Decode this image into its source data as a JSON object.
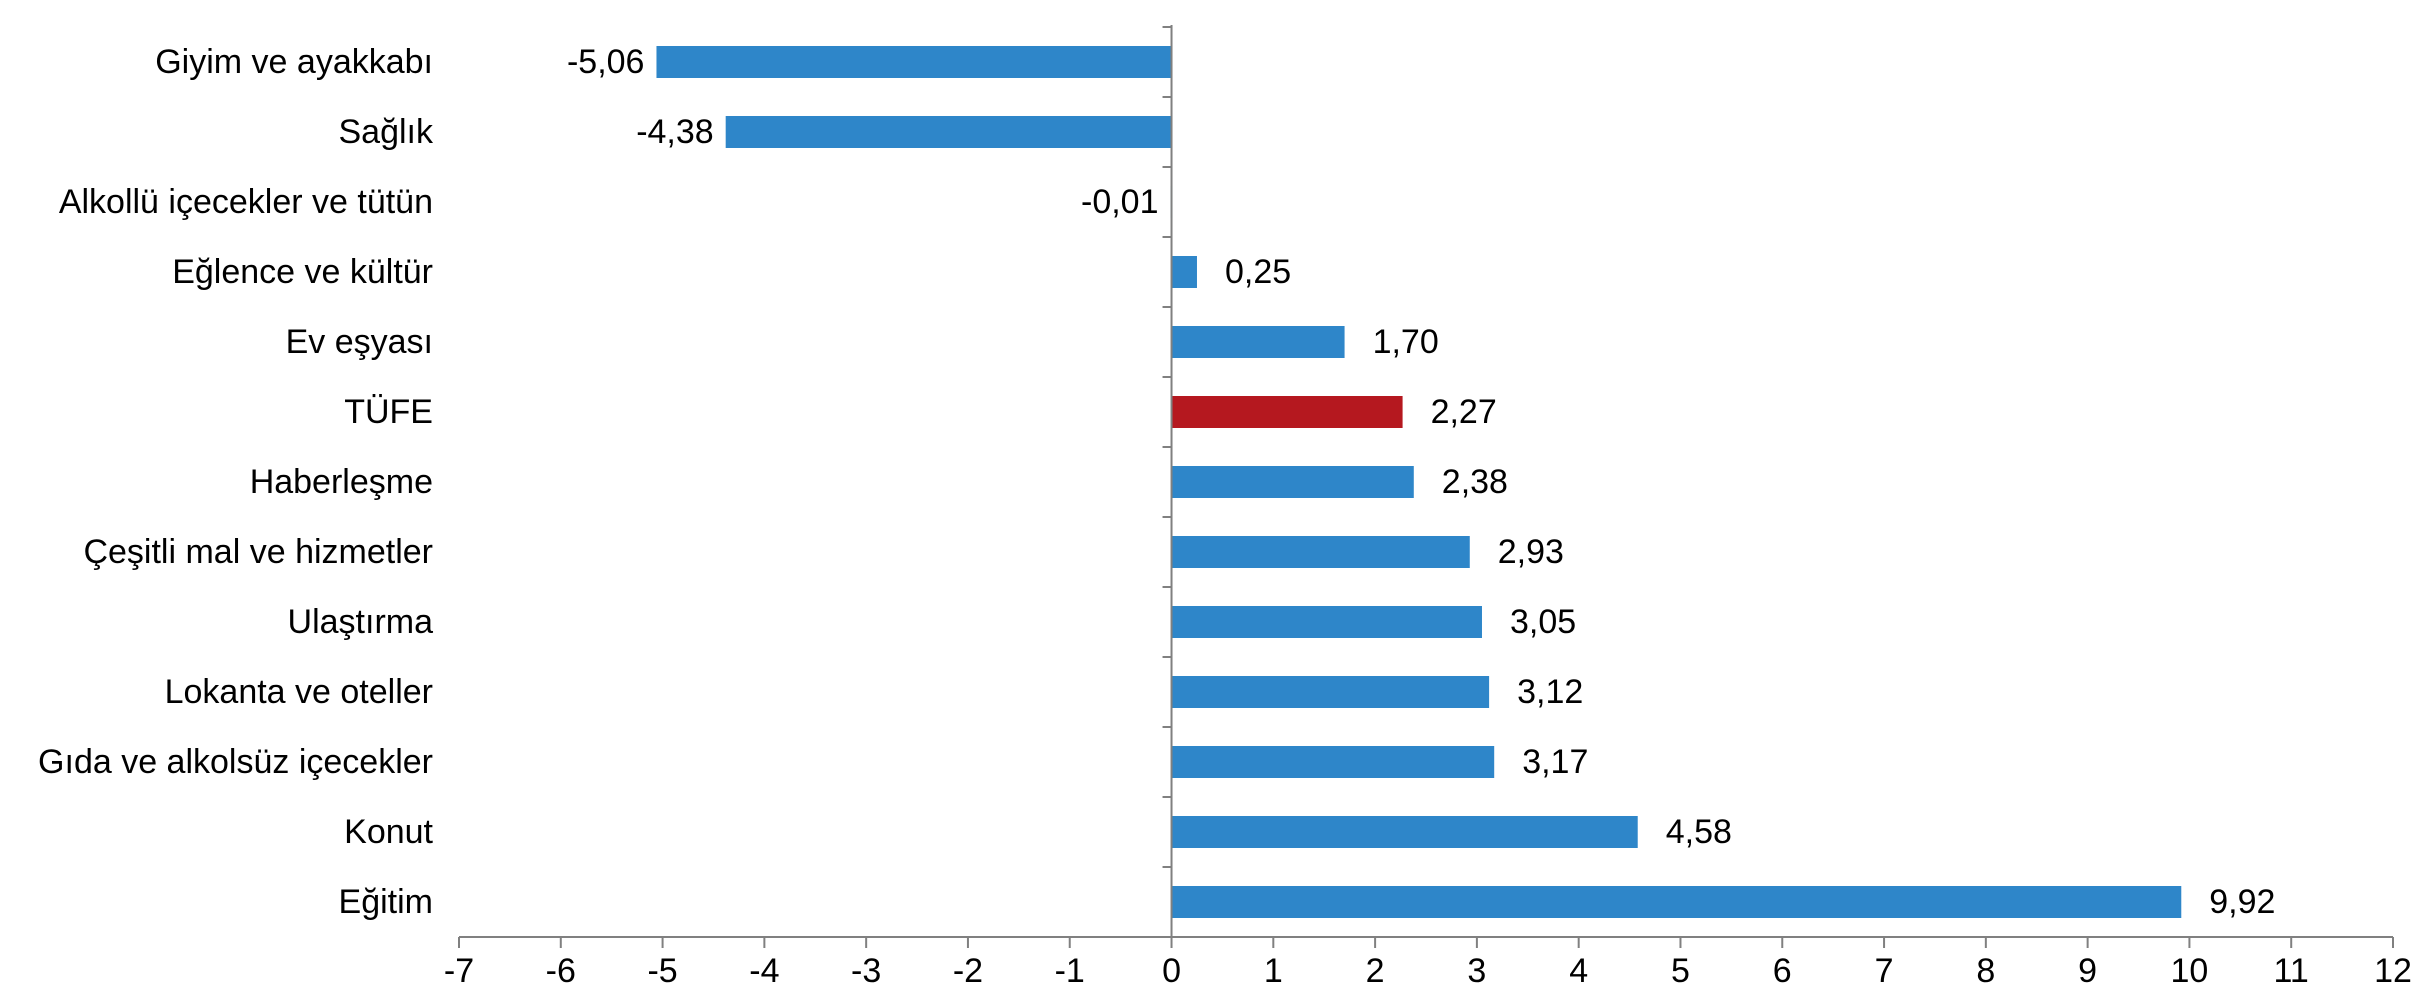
{
  "chart_data": {
    "type": "bar",
    "orientation": "horizontal",
    "title": "",
    "xlabel": "",
    "ylabel": "",
    "xlim": [
      -7,
      12
    ],
    "x_ticks": [
      -7,
      -6,
      -5,
      -4,
      -3,
      -2,
      -1,
      0,
      1,
      2,
      3,
      4,
      5,
      6,
      7,
      8,
      9,
      10,
      11,
      12
    ],
    "grid": false,
    "legend": "none",
    "categories": [
      "Giyim ve ayakkabı",
      "Sağlık",
      "Alkollü içecekler ve tütün",
      "Eğlence ve kültür",
      "Ev eşyası",
      "TÜFE",
      "Haberleşme",
      "Çeşitli mal ve hizmetler",
      "Ulaştırma",
      "Lokanta ve oteller",
      "Gıda ve alkolsüz içecekler",
      "Konut",
      "Eğitim"
    ],
    "values": [
      -5.06,
      -4.38,
      -0.01,
      0.25,
      1.7,
      2.27,
      2.38,
      2.93,
      3.05,
      3.12,
      3.17,
      4.58,
      9.92
    ],
    "value_labels": [
      "-5,06",
      "-4,38",
      "-0,01",
      "0,25",
      "1,70",
      "2,27",
      "2,38",
      "2,93",
      "3,05",
      "3,12",
      "3,17",
      "4,58",
      "9,92"
    ],
    "highlight_category": "TÜFE",
    "colors": {
      "bar": "#2E86C9",
      "highlight": "#B5181F",
      "axis": "#808080",
      "text": "#000000"
    }
  }
}
